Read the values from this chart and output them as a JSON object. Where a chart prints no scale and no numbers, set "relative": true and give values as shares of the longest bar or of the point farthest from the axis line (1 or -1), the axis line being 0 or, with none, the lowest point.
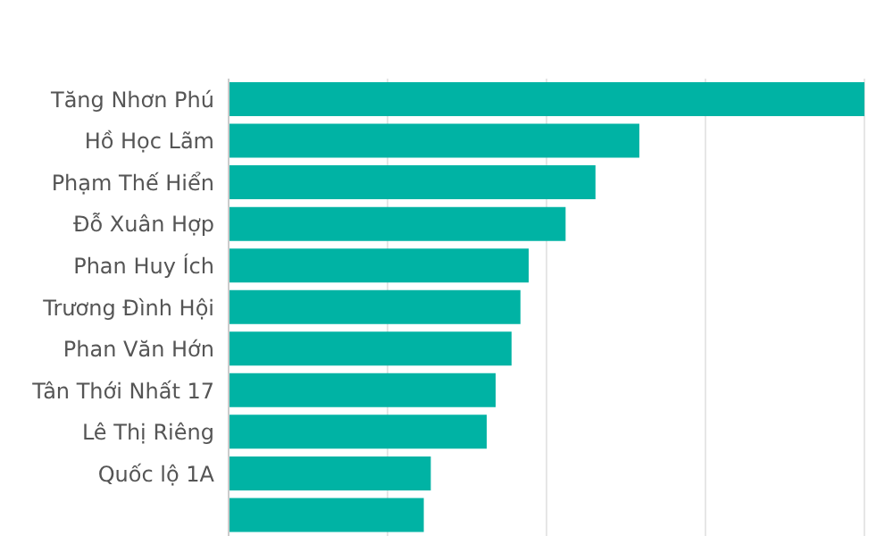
{
  "chart_data": {
    "type": "bar",
    "orientation": "horizontal",
    "relative": true,
    "grid": "x",
    "color": "#00b3a4",
    "categories": [
      "Tăng Nhơn Phú",
      "Hồ Học Lãm",
      "Phạm Thế Hiển",
      "Đỗ Xuân Hợp",
      "Phan Huy Ích",
      "Trương Đình Hội",
      "Phan Văn Hớn",
      "Tân Thới Nhất 17",
      "Lê Thị Riêng",
      "Quốc lộ 1A",
      null
    ],
    "values": [
      1,
      0.646,
      0.577,
      0.53,
      0.472,
      0.459,
      0.445,
      0.42,
      0.406,
      0.318,
      0.307
    ]
  }
}
